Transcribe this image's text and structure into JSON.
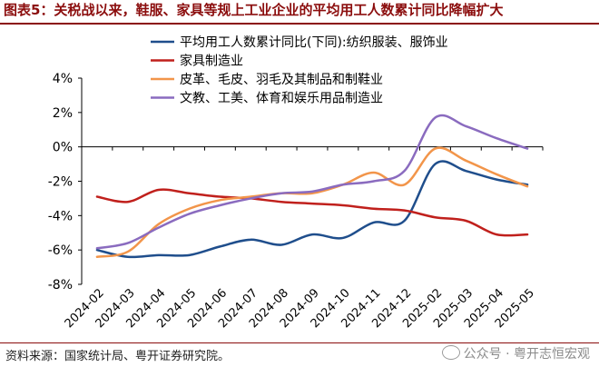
{
  "title": "图表5：关税战以来，鞋服、家具等规上工业企业的平均用工人数累计同比降幅扩大",
  "source": "资料来源：国家统计局、粤开证券研究院。",
  "watermark": "公众号 · 粤开志恒宏观",
  "chart_data": {
    "type": "line",
    "categories": [
      "2024-02",
      "2024-03",
      "2024-04",
      "2024-05",
      "2024-06",
      "2024-07",
      "2024-08",
      "2024-09",
      "2024-10",
      "2024-11",
      "2024-12",
      "2025-02",
      "2025-03",
      "2025-04",
      "2025-05"
    ],
    "ylim": [
      -8,
      4
    ],
    "ytick_labels": [
      "4%",
      "2%",
      "0%",
      "-2%",
      "-4%",
      "-6%",
      "-8%"
    ],
    "yticks": [
      4,
      2,
      0,
      -2,
      -4,
      -6,
      -8
    ],
    "grid": false,
    "legend_position": "top",
    "series": [
      {
        "name": "平均用工人数累计同比(下同):纺织服装、服饰业",
        "color": "#1f4e8c",
        "values": [
          -6.0,
          -6.4,
          -6.3,
          -6.3,
          -5.8,
          -5.4,
          -5.7,
          -5.1,
          -5.3,
          -4.4,
          -4.3,
          -1.0,
          -1.4,
          -1.9,
          -2.2
        ]
      },
      {
        "name": "家具制造业",
        "color": "#c0201c",
        "values": [
          -2.9,
          -3.2,
          -2.5,
          -2.7,
          -2.9,
          -3.0,
          -3.2,
          -3.3,
          -3.4,
          -3.6,
          -3.7,
          -4.1,
          -4.3,
          -5.1,
          -5.1
        ]
      },
      {
        "name": "皮革、毛皮、羽毛及其制品和制鞋业",
        "color": "#f2954a",
        "values": [
          -6.4,
          -6.1,
          -4.5,
          -3.6,
          -3.1,
          -2.9,
          -2.7,
          -2.7,
          -2.2,
          -1.5,
          -2.2,
          -0.1,
          -0.8,
          -1.6,
          -2.3
        ]
      },
      {
        "name": "文教、工美、体育和娱乐用品制造业",
        "color": "#8a6bbf",
        "values": [
          -5.9,
          -5.6,
          -4.7,
          -3.9,
          -3.4,
          -3.0,
          -2.7,
          -2.6,
          -2.2,
          -2.0,
          -1.4,
          1.7,
          1.2,
          0.5,
          -0.1
        ]
      }
    ]
  }
}
